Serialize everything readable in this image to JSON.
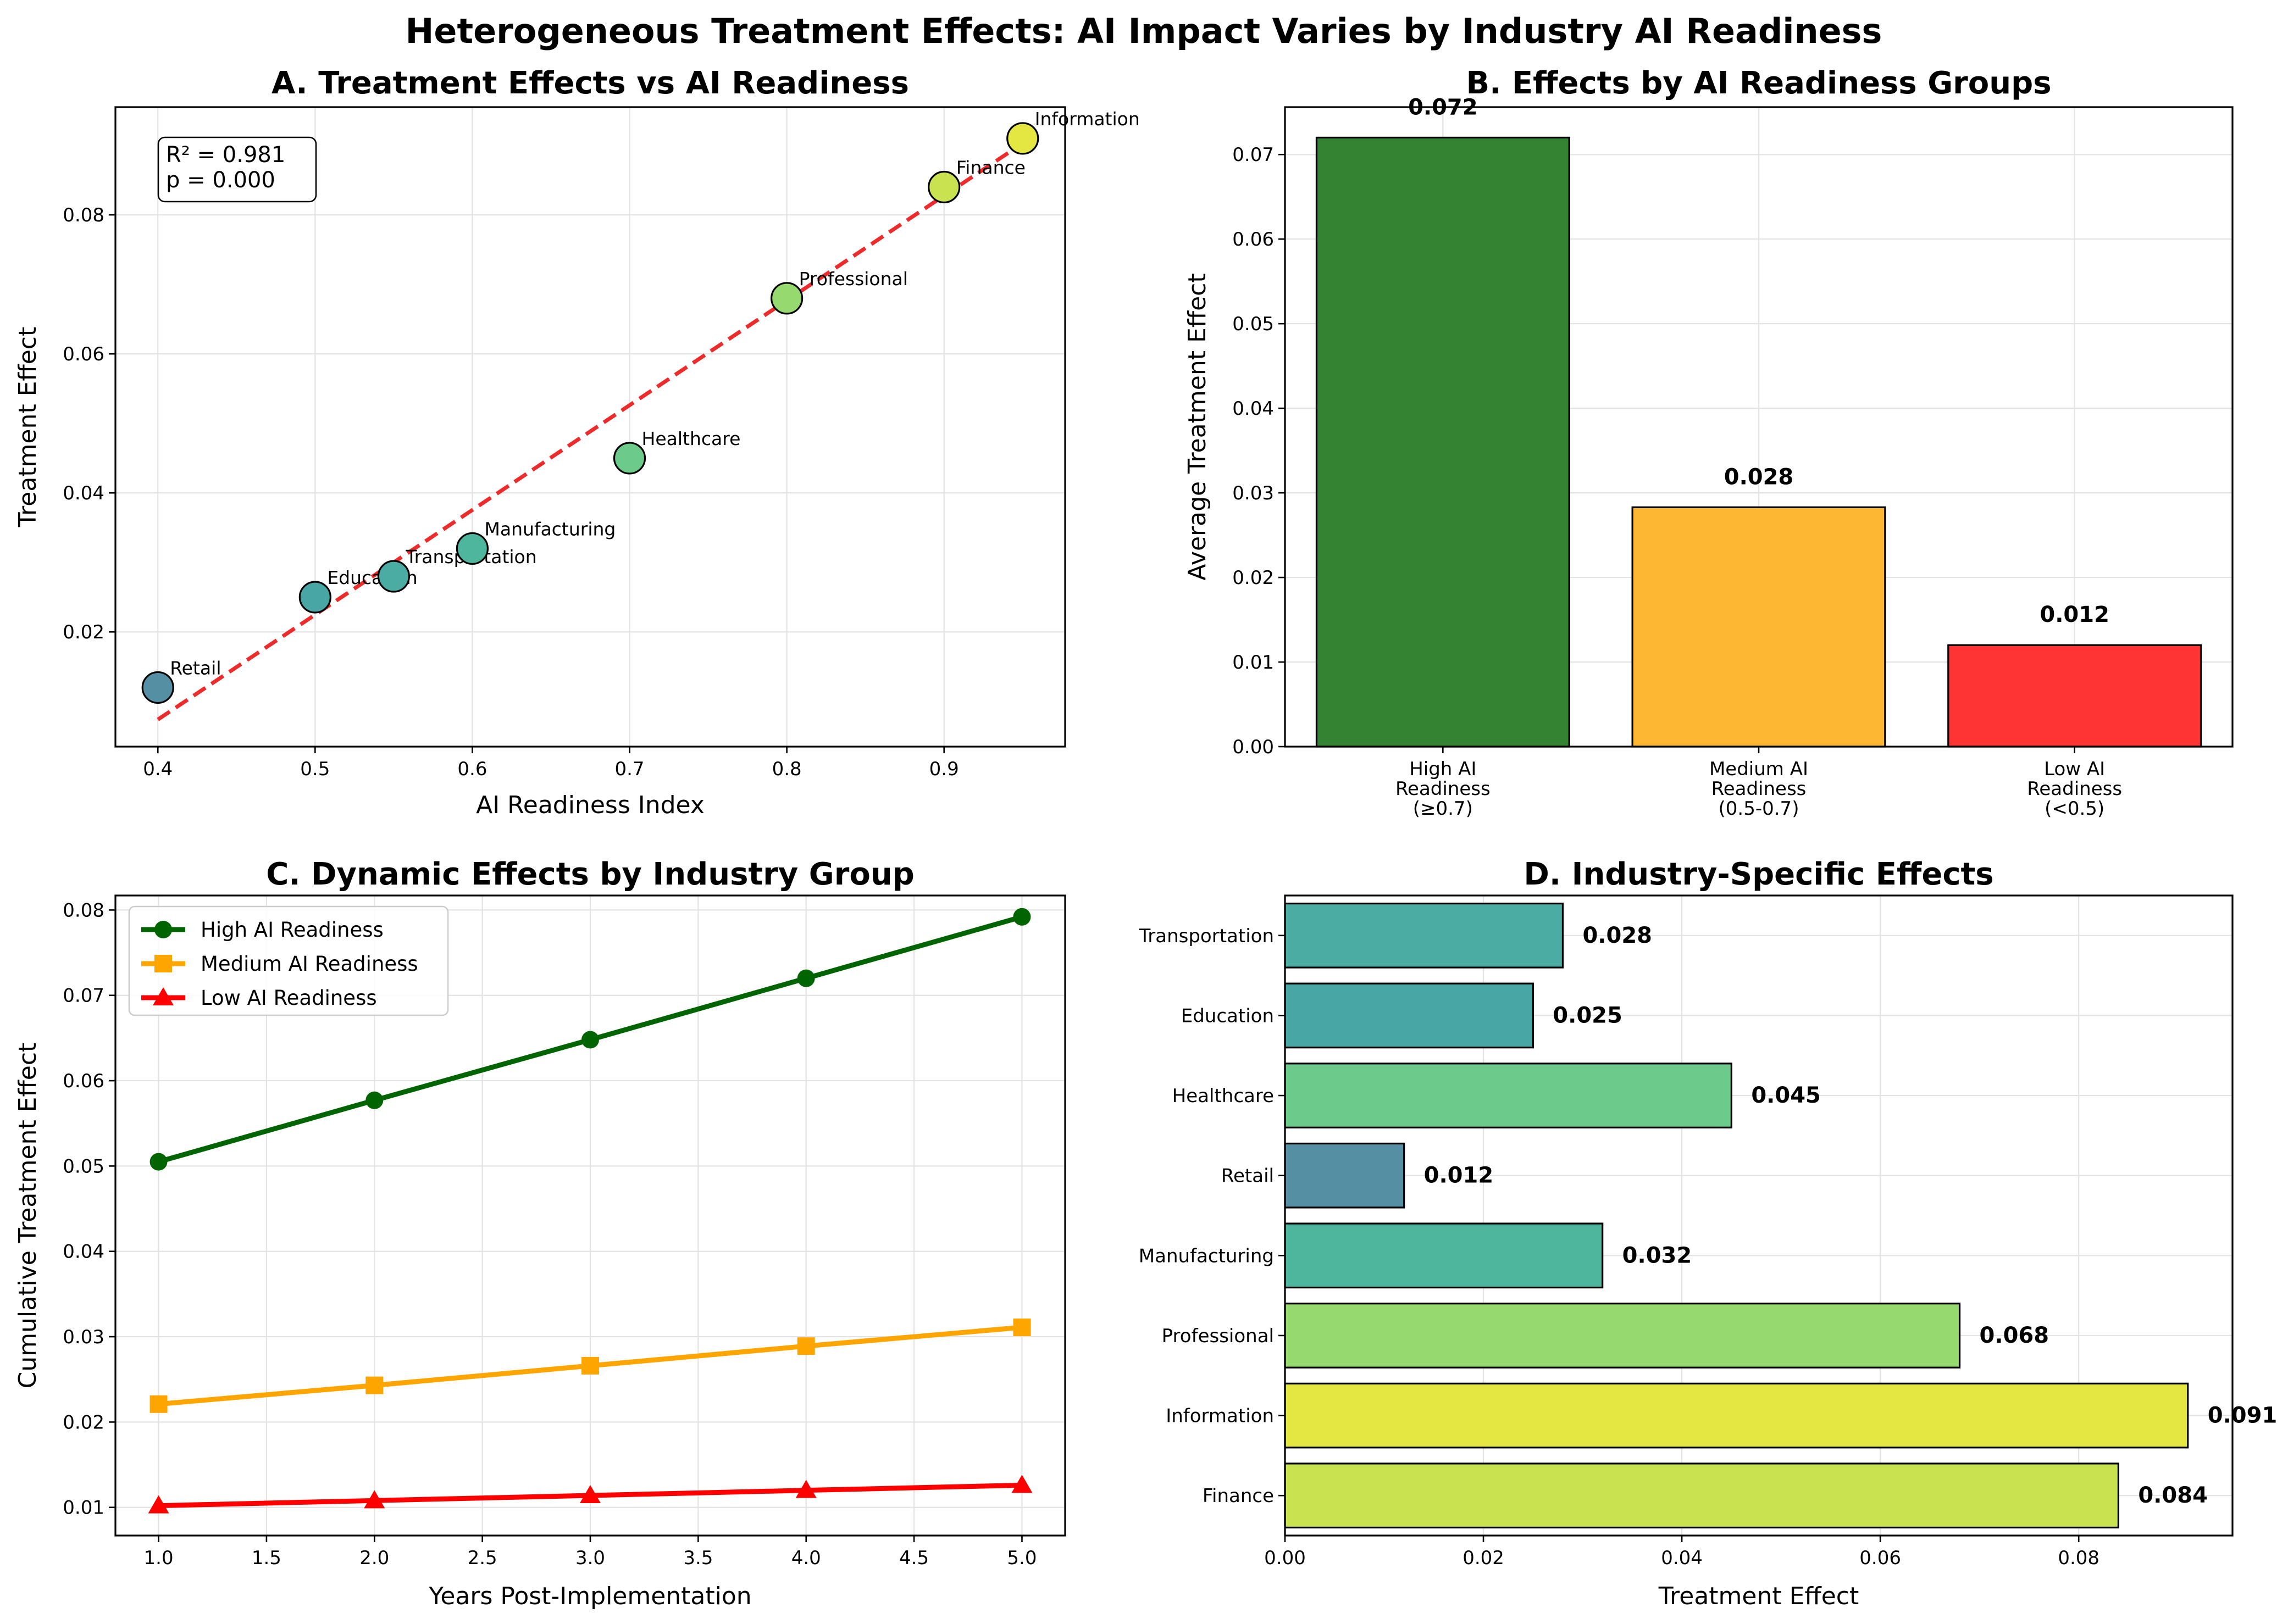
{
  "figure_title": "Heterogeneous Treatment Effects: AI Impact Varies by Industry AI Readiness",
  "colors": {
    "high": "#006400",
    "medium": "#FFA500",
    "low": "#FF0000",
    "trend": "#EE2B2B",
    "grid": "#E3E3E3"
  },
  "chart_data": [
    {
      "panel": "A",
      "type": "scatter",
      "title": "A. Treatment Effects vs AI Readiness",
      "xlabel": "AI Readiness Index",
      "ylabel": "Treatment Effect",
      "xlim": [
        0.373,
        0.977
      ],
      "ylim": [
        0.0035,
        0.0955
      ],
      "xticks": [
        0.4,
        0.5,
        0.6,
        0.7,
        0.8,
        0.9
      ],
      "xtick_labels": [
        "0.4",
        "0.5",
        "0.6",
        "0.7",
        "0.8",
        "0.9"
      ],
      "yticks": [
        0.02,
        0.04,
        0.06,
        0.08
      ],
      "ytick_labels": [
        "0.02",
        "0.04",
        "0.06",
        "0.08"
      ],
      "stats_lines": [
        "R² = 0.981",
        "p = 0.000"
      ],
      "trend": {
        "x": [
          0.4,
          0.95
        ],
        "y": [
          0.0074,
          0.0903
        ]
      },
      "points": [
        {
          "label": "Retail",
          "x": 0.4,
          "y": 0.012,
          "color": "#548FA4"
        },
        {
          "label": "Education",
          "x": 0.5,
          "y": 0.025,
          "color": "#48A6A4"
        },
        {
          "label": "Transportation",
          "x": 0.55,
          "y": 0.028,
          "color": "#4AACA2"
        },
        {
          "label": "Manufacturing",
          "x": 0.6,
          "y": 0.032,
          "color": "#4DB69C"
        },
        {
          "label": "Healthcare",
          "x": 0.7,
          "y": 0.045,
          "color": "#6CCB8A"
        },
        {
          "label": "Professional",
          "x": 0.8,
          "y": 0.068,
          "color": "#95D96F"
        },
        {
          "label": "Finance",
          "x": 0.9,
          "y": 0.084,
          "color": "#C8E250"
        },
        {
          "label": "Information",
          "x": 0.95,
          "y": 0.091,
          "color": "#E4E742"
        }
      ]
    },
    {
      "panel": "B",
      "type": "bar",
      "title": "B. Effects by AI Readiness Groups",
      "xlabel": "",
      "ylabel": "Average Treatment Effect",
      "ylim": [
        0,
        0.0756
      ],
      "yticks": [
        0,
        0.01,
        0.02,
        0.03,
        0.04,
        0.05,
        0.06,
        0.07
      ],
      "ytick_labels": [
        "0.00",
        "0.01",
        "0.02",
        "0.03",
        "0.04",
        "0.05",
        "0.06",
        "0.07"
      ],
      "categories": [
        [
          "High AI",
          "Readiness",
          "(≥0.7)"
        ],
        [
          "Medium AI",
          "Readiness",
          "(0.5-0.7)"
        ],
        [
          "Low AI",
          "Readiness",
          "(<0.5)"
        ]
      ],
      "values": [
        0.072,
        0.0283,
        0.012
      ],
      "value_labels": [
        "0.072",
        "0.028",
        "0.012"
      ],
      "bar_colors": [
        "#338333",
        "#FEB733",
        "#FE3333"
      ]
    },
    {
      "panel": "C",
      "type": "line",
      "title": "C. Dynamic Effects by Industry Group",
      "xlabel": "Years Post-Implementation",
      "ylabel": "Cumulative Treatment Effect",
      "xlim": [
        0.8,
        5.2
      ],
      "ylim": [
        0.0067,
        0.0817
      ],
      "xticks": [
        1.0,
        1.5,
        2.0,
        2.5,
        3.0,
        3.5,
        4.0,
        4.5,
        5.0
      ],
      "xtick_labels": [
        "1.0",
        "1.5",
        "2.0",
        "2.5",
        "3.0",
        "3.5",
        "4.0",
        "4.5",
        "5.0"
      ],
      "yticks": [
        0.01,
        0.02,
        0.03,
        0.04,
        0.05,
        0.06,
        0.07,
        0.08
      ],
      "ytick_labels": [
        "0.01",
        "0.02",
        "0.03",
        "0.04",
        "0.05",
        "0.06",
        "0.07",
        "0.08"
      ],
      "x": [
        1,
        2,
        3,
        4,
        5
      ],
      "series": [
        {
          "name": "High AI Readiness",
          "values": [
            0.0505,
            0.0577,
            0.0648,
            0.072,
            0.0792
          ],
          "color": "#006400",
          "marker": "circle"
        },
        {
          "name": "Medium AI Readiness",
          "values": [
            0.0221,
            0.0243,
            0.0266,
            0.0289,
            0.0311
          ],
          "color": "#FFA500",
          "marker": "square"
        },
        {
          "name": "Low AI Readiness",
          "values": [
            0.0102,
            0.0108,
            0.0114,
            0.012,
            0.0126
          ],
          "color": "#FF0000",
          "marker": "triangle"
        }
      ],
      "legend": "upper-left"
    },
    {
      "panel": "D",
      "type": "barh",
      "title": "D. Industry-Specific Effects",
      "xlabel": "Treatment Effect",
      "ylabel": "",
      "xlim": [
        0,
        0.0955
      ],
      "xticks": [
        0,
        0.02,
        0.04,
        0.06,
        0.08
      ],
      "xtick_labels": [
        "0.00",
        "0.02",
        "0.04",
        "0.06",
        "0.08"
      ],
      "categories": [
        "Transportation",
        "Education",
        "Healthcare",
        "Retail",
        "Manufacturing",
        "Professional",
        "Information",
        "Finance"
      ],
      "values": [
        0.028,
        0.025,
        0.045,
        0.012,
        0.032,
        0.068,
        0.091,
        0.084
      ],
      "value_labels": [
        "0.028",
        "0.025",
        "0.045",
        "0.012",
        "0.032",
        "0.068",
        "0.091",
        "0.084"
      ],
      "bar_colors": [
        "#4AACA2",
        "#48A6A4",
        "#6CCB8A",
        "#548FA4",
        "#4DB69C",
        "#95D96F",
        "#E4E742",
        "#C8E250"
      ]
    }
  ]
}
